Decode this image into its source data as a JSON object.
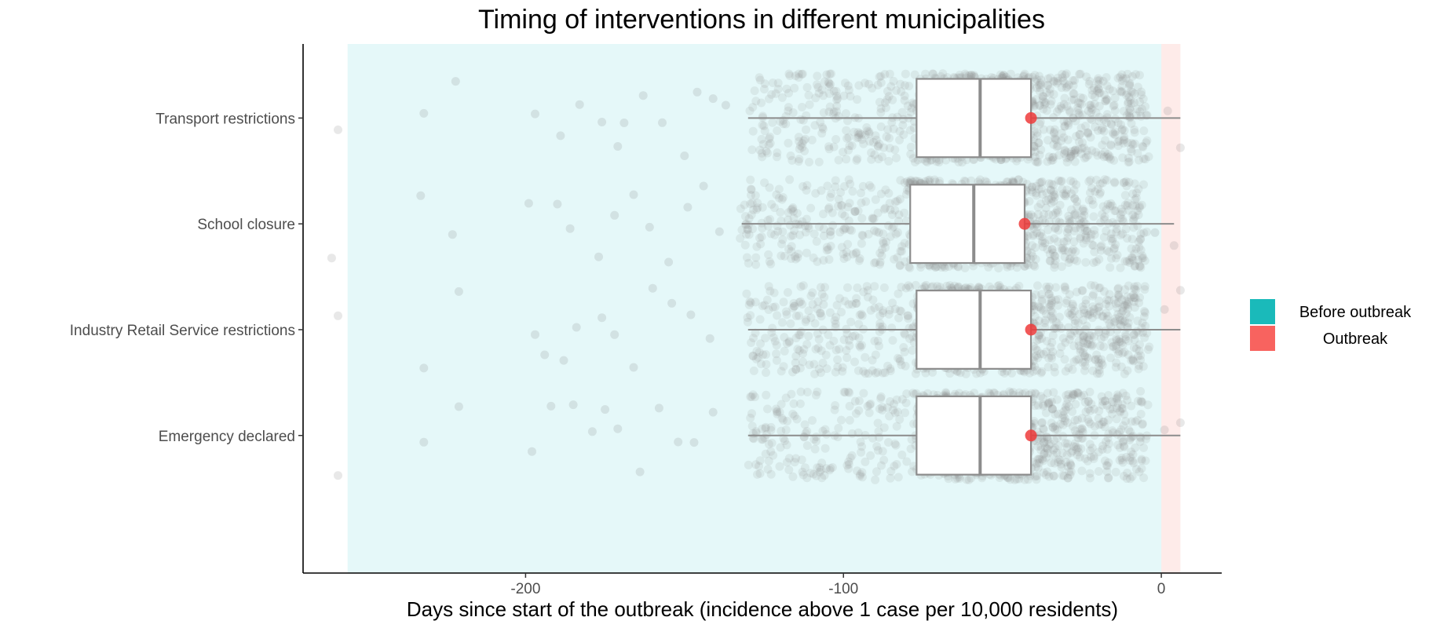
{
  "chart_data": {
    "type": "box",
    "title": "Timing of interventions in different municipalities",
    "xlabel": "Days since start of the outbreak (incidence above 1 case per 10,000 residents)",
    "ylabel": "",
    "xlim": [
      -270,
      19
    ],
    "x_ticks": [
      -200,
      -100,
      0
    ],
    "x_tick_labels": [
      "-200",
      "-100",
      "0"
    ],
    "grid": false,
    "categories": [
      "Transport restrictions",
      "School closure",
      "Industry Retail Service restrictions",
      "Emergency declared"
    ],
    "background_bands": [
      {
        "label": "Before outbreak",
        "x_from": -256,
        "x_to": 0,
        "color": "#00BFC4",
        "opacity": 0.1
      },
      {
        "label": "Outbreak",
        "x_from": 0,
        "x_to": 6,
        "color": "#F8766D",
        "opacity": 0.15
      }
    ],
    "series": [
      {
        "category": "Transport restrictions",
        "whisker_low": -130,
        "q1": -77,
        "median": -57,
        "q3": -41,
        "whisker_high": 6,
        "highlight": -41,
        "outliers": [
          -259,
          -232,
          -222,
          -197,
          -189,
          -183,
          -176,
          -171,
          -169,
          -163,
          -157,
          -150,
          -146,
          -141,
          -137,
          2,
          6
        ]
      },
      {
        "category": "School closure",
        "whisker_low": -132,
        "q1": -79,
        "median": -59,
        "q3": -43,
        "whisker_high": 4,
        "highlight": -43,
        "outliers": [
          -261,
          -233,
          -223,
          -199,
          -190,
          -186,
          -177,
          -172,
          -166,
          -161,
          -155,
          -149,
          -144,
          -139,
          -2,
          4
        ]
      },
      {
        "category": "Industry Retail Service restrictions",
        "whisker_low": -130,
        "q1": -77,
        "median": -57,
        "q3": -41,
        "whisker_high": 6,
        "highlight": -41,
        "outliers": [
          -259,
          -232,
          -221,
          -197,
          -194,
          -188,
          -184,
          -176,
          -172,
          -166,
          -160,
          -154,
          -148,
          -142,
          1,
          6
        ]
      },
      {
        "category": "Emergency declared",
        "whisker_low": -130,
        "q1": -77,
        "median": -57,
        "q3": -41,
        "whisker_high": 6,
        "highlight": -41,
        "outliers": [
          -259,
          -232,
          -221,
          -198,
          -192,
          -185,
          -179,
          -175,
          -171,
          -164,
          -158,
          -152,
          -147,
          -141,
          1,
          6
        ]
      }
    ],
    "jitter_color": "#808080",
    "box_fill": "#ffffff",
    "box_stroke": "#8c8c8c",
    "highlight_color": "#ee3b3b",
    "legend": {
      "position": "right",
      "items": [
        {
          "label": "Before outbreak",
          "color": "#1ABABA"
        },
        {
          "label": "Outbreak",
          "color": "#F8635F"
        }
      ]
    }
  }
}
